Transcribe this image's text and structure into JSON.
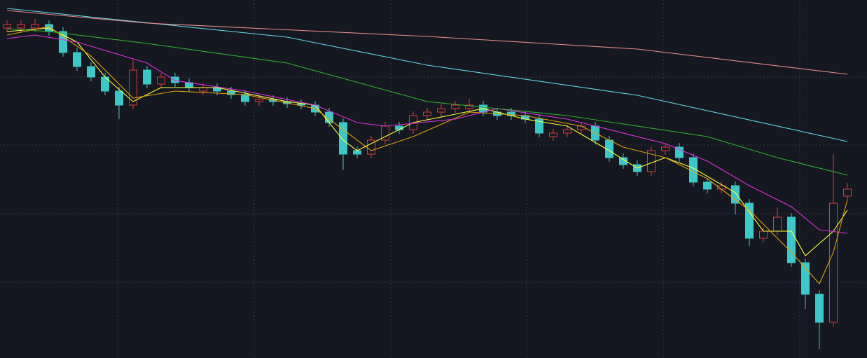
{
  "chart_data": {
    "type": "candlestick",
    "up_color": "#e03a3a",
    "down_color": "#3cc8c8",
    "grid": true,
    "xlim": [
      -0.5,
      61.4
    ],
    "ylim": [
      0,
      511
    ],
    "xticks": [
      7.9,
      17.65,
      27.4,
      37.1,
      46.85,
      56.6
    ],
    "yticks": [
      108,
      206,
      304,
      401
    ],
    "candles": [
      [
        471,
        482,
        465,
        476
      ],
      [
        471,
        482,
        465,
        476
      ],
      [
        471,
        484,
        465,
        476
      ],
      [
        476,
        482,
        460,
        466
      ],
      [
        466,
        472,
        430,
        436
      ],
      [
        436,
        442,
        410,
        416
      ],
      [
        416,
        422,
        395,
        401
      ],
      [
        401,
        407,
        375,
        381
      ],
      [
        381,
        387,
        341,
        361
      ],
      [
        361,
        426,
        355,
        411
      ],
      [
        411,
        417,
        385,
        391
      ],
      [
        391,
        407,
        385,
        401
      ],
      [
        401,
        407,
        387,
        393
      ],
      [
        393,
        399,
        380,
        386
      ],
      [
        381,
        392,
        375,
        386
      ],
      [
        386,
        392,
        375,
        381
      ],
      [
        381,
        387,
        370,
        376
      ],
      [
        376,
        382,
        360,
        366
      ],
      [
        366,
        375,
        360,
        369
      ],
      [
        369,
        375,
        360,
        366
      ],
      [
        366,
        372,
        357,
        363
      ],
      [
        363,
        369,
        355,
        361
      ],
      [
        361,
        367,
        345,
        351
      ],
      [
        351,
        357,
        330,
        336
      ],
      [
        336,
        342,
        268,
        291
      ],
      [
        296,
        302,
        285,
        291
      ],
      [
        291,
        317,
        285,
        311
      ],
      [
        311,
        337,
        305,
        331
      ],
      [
        331,
        337,
        320,
        326
      ],
      [
        326,
        352,
        320,
        346
      ],
      [
        346,
        357,
        340,
        351
      ],
      [
        351,
        362,
        345,
        356
      ],
      [
        356,
        367,
        350,
        361
      ],
      [
        356,
        370,
        350,
        361
      ],
      [
        361,
        367,
        345,
        351
      ],
      [
        351,
        357,
        340,
        346
      ],
      [
        351,
        357,
        340,
        346
      ],
      [
        346,
        352,
        335,
        341
      ],
      [
        341,
        347,
        315,
        321
      ],
      [
        316,
        327,
        310,
        321
      ],
      [
        321,
        332,
        315,
        326
      ],
      [
        326,
        337,
        320,
        331
      ],
      [
        331,
        337,
        305,
        311
      ],
      [
        311,
        317,
        280,
        286
      ],
      [
        286,
        292,
        270,
        276
      ],
      [
        276,
        282,
        260,
        266
      ],
      [
        266,
        302,
        260,
        296
      ],
      [
        296,
        307,
        290,
        301
      ],
      [
        301,
        307,
        280,
        286
      ],
      [
        286,
        292,
        245,
        251
      ],
      [
        251,
        257,
        235,
        241
      ],
      [
        241,
        252,
        235,
        246
      ],
      [
        246,
        252,
        205,
        221
      ],
      [
        221,
        227,
        160,
        171
      ],
      [
        171,
        187,
        165,
        181
      ],
      [
        181,
        215,
        175,
        201
      ],
      [
        201,
        207,
        130,
        136
      ],
      [
        136,
        142,
        70,
        91
      ],
      [
        91,
        97,
        13,
        51
      ],
      [
        51,
        291,
        45,
        221
      ],
      [
        231,
        250,
        225,
        241
      ]
    ],
    "series": [
      {
        "color": "#ffff40",
        "x": [
          0,
          3,
          5,
          7,
          9,
          11,
          15,
          20,
          22,
          24,
          25,
          27,
          29,
          34,
          37,
          40,
          43,
          45,
          47,
          49,
          52,
          54,
          56,
          57,
          59,
          60
        ],
        "values": [
          466,
          471,
          451,
          401,
          366,
          386,
          386,
          366,
          361,
          311,
          296,
          316,
          336,
          356,
          341,
          331,
          296,
          271,
          286,
          271,
          236,
          181,
          181,
          146,
          181,
          211
        ]
      },
      {
        "color": "#e0a010",
        "x": [
          0,
          3,
          6,
          9,
          12,
          17,
          22,
          24,
          26,
          29,
          33,
          37,
          41,
          44,
          47,
          50,
          53,
          56,
          58,
          59,
          60
        ],
        "values": [
          461,
          473,
          431,
          371,
          381,
          376,
          356,
          326,
          296,
          316,
          351,
          346,
          331,
          301,
          286,
          256,
          211,
          151,
          106,
          151,
          226
        ]
      },
      {
        "color": "#e030e0",
        "x": [
          0,
          2,
          5,
          10,
          12,
          17,
          22,
          25,
          27,
          32,
          35,
          40,
          42,
          47,
          50,
          53,
          56,
          58,
          60
        ],
        "values": [
          456,
          461,
          451,
          421,
          396,
          381,
          361,
          336,
          331,
          341,
          356,
          341,
          331,
          306,
          281,
          246,
          216,
          183,
          178
        ]
      },
      {
        "color": "#30b030",
        "x": [
          0,
          3,
          10,
          20,
          30,
          40,
          50,
          55,
          60
        ],
        "values": [
          470,
          466,
          449,
          421,
          366,
          346,
          316,
          286,
          261
        ]
      },
      {
        "color": "#60d8e8",
        "x": [
          0,
          20,
          30,
          45,
          60
        ],
        "values": [
          499,
          458,
          418,
          375,
          309
        ]
      },
      {
        "color": "#e88a8a",
        "x": [
          0,
          10,
          30,
          45,
          60
        ],
        "values": [
          496,
          478,
          459,
          441,
          405
        ]
      }
    ]
  }
}
